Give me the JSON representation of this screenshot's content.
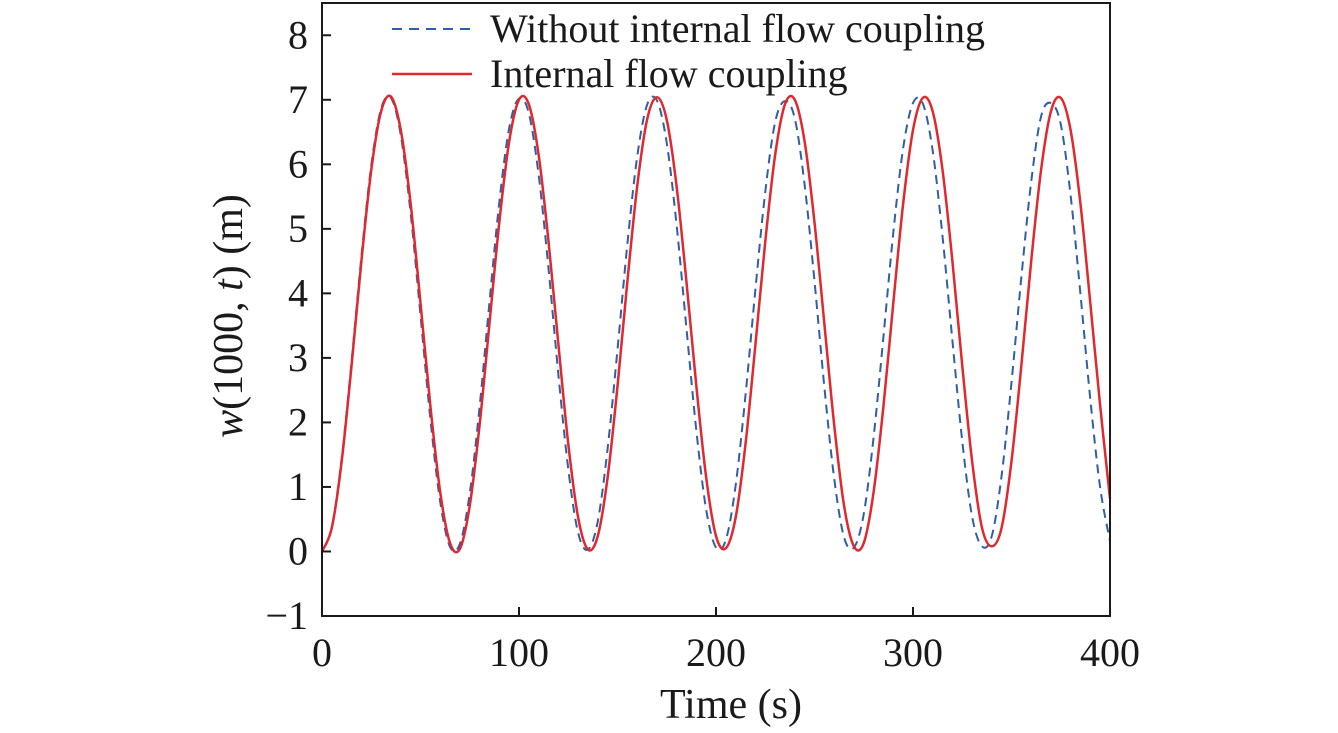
{
  "chart_data": {
    "type": "line",
    "title": "",
    "xlabel": "Time (s)",
    "ylabel": {
      "pre": "w",
      "mid": "(1000, ",
      "var": "t",
      "post": ") (m)"
    },
    "xlim": [
      0,
      400
    ],
    "ylim": [
      -1,
      8.5
    ],
    "xticks": [
      0,
      100,
      200,
      300,
      400
    ],
    "yticks": [
      -1,
      0,
      1,
      2,
      3,
      4,
      5,
      6,
      7,
      8
    ],
    "ytick_labels": [
      "−1",
      "0",
      "1",
      "2",
      "3",
      "4",
      "5",
      "6",
      "7",
      "8"
    ],
    "grid": false,
    "legend_position": "top-center",
    "x": [
      0,
      5,
      10,
      15,
      20,
      25,
      30,
      35,
      40,
      45,
      50,
      55,
      60,
      65,
      70,
      75,
      80,
      85,
      90,
      95,
      100,
      105,
      110,
      115,
      120,
      125,
      130,
      135,
      140,
      145,
      150,
      155,
      160,
      165,
      170,
      175,
      180,
      185,
      190,
      195,
      200,
      205,
      210,
      215,
      220,
      225,
      230,
      235,
      240,
      245,
      250,
      255,
      260,
      265,
      270,
      275,
      280,
      285,
      290,
      295,
      300,
      305,
      310,
      315,
      320,
      325,
      330,
      335,
      340,
      345,
      350,
      355,
      360,
      365,
      370,
      375,
      380,
      385,
      390,
      395,
      400
    ],
    "series": [
      {
        "name": "Without internal flow coupling",
        "color": "#2f5fa8",
        "style": "dashed",
        "values": [
          0,
          0.38,
          1.44,
          2.94,
          4.57,
          5.98,
          6.86,
          7.03,
          6.45,
          5.24,
          3.66,
          2.06,
          0.77,
          0.07,
          0.12,
          0.9,
          2.24,
          3.86,
          5.41,
          6.56,
          7.02,
          6.79,
          5.83,
          4.38,
          2.74,
          1.28,
          0.29,
          0.03,
          0.47,
          1.6,
          3.13,
          4.76,
          6.12,
          6.92,
          6.99,
          6.33,
          5.06,
          3.46,
          1.88,
          0.65,
          0.06,
          0.18,
          1.03,
          2.43,
          4.06,
          5.57,
          6.65,
          6.98,
          6.71,
          5.68,
          4.19,
          2.55,
          1.13,
          0.22,
          0.06,
          0.58,
          1.77,
          3.33,
          4.94,
          6.25,
          6.95,
          6.94,
          6.21,
          4.88,
          3.27,
          1.71,
          0.54,
          0.08,
          0.24,
          1.18,
          2.62,
          4.25,
          5.73,
          6.74,
          6.95,
          6.62,
          5.52,
          3.99,
          2.36,
          0.99,
          0.16
        ]
      },
      {
        "name": "Internal flow coupling",
        "color": "#e0282e",
        "style": "solid",
        "values": [
          0,
          0.37,
          1.4,
          2.88,
          4.5,
          5.91,
          6.82,
          7.05,
          6.53,
          5.39,
          3.85,
          2.26,
          0.92,
          0.13,
          0.04,
          0.71,
          1.96,
          3.53,
          5.1,
          6.35,
          7.0,
          6.93,
          6.14,
          4.8,
          3.21,
          1.67,
          0.53,
          0.03,
          0.24,
          1.15,
          2.56,
          4.18,
          5.66,
          6.69,
          7.04,
          6.69,
          5.66,
          4.18,
          2.57,
          1.15,
          0.24,
          0.05,
          0.53,
          1.67,
          3.2,
          4.8,
          6.14,
          6.93,
          7.0,
          6.35,
          5.1,
          3.53,
          1.96,
          0.71,
          0.08,
          0.13,
          0.92,
          2.25,
          3.85,
          5.39,
          6.53,
          7.03,
          6.82,
          5.91,
          4.5,
          2.88,
          1.4,
          0.37,
          0.08,
          0.37,
          1.4,
          2.88,
          4.5,
          5.91,
          6.82,
          7.03,
          6.53,
          5.39,
          3.85,
          2.26,
          0.82
        ]
      }
    ]
  }
}
